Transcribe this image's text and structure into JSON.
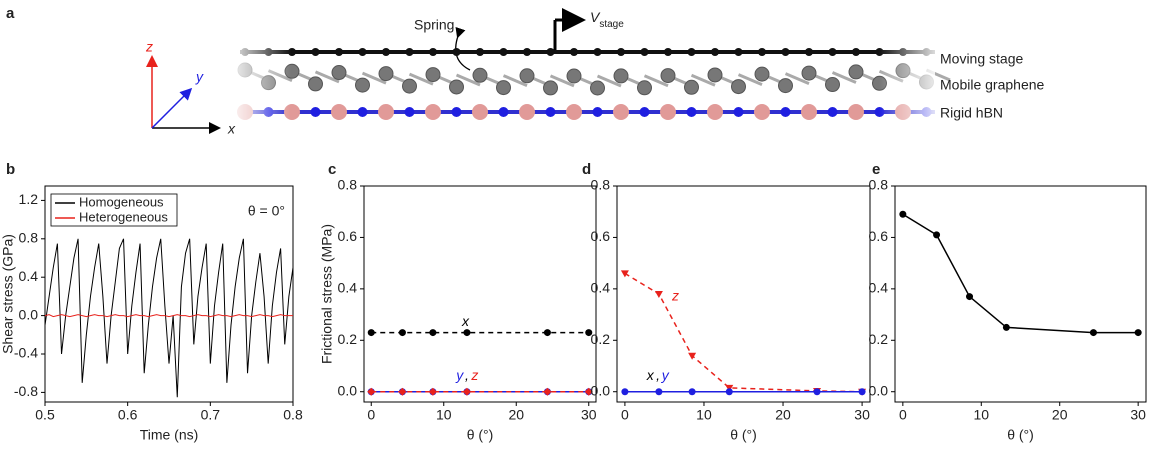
{
  "schematic": {
    "label": "a",
    "axes": [
      "x",
      "y",
      "z"
    ],
    "spring": "Spring",
    "velocity": "V",
    "velocity_sub": "stage",
    "layers": [
      "Moving stage",
      "Mobile graphene",
      "Rigid hBN"
    ]
  },
  "chart_data": [
    {
      "type": "line",
      "label": "b",
      "xlabel": "Time (ns)",
      "ylabel": "Shear stress (GPa)",
      "annotation": "θ = 0°",
      "legend": "upper left",
      "x": [
        0.5,
        0.505,
        0.51,
        0.515,
        0.52,
        0.525,
        0.53,
        0.535,
        0.54,
        0.545,
        0.55,
        0.555,
        0.56,
        0.565,
        0.57,
        0.575,
        0.58,
        0.585,
        0.59,
        0.595,
        0.6,
        0.605,
        0.61,
        0.615,
        0.62,
        0.625,
        0.63,
        0.635,
        0.64,
        0.645,
        0.65,
        0.655,
        0.66,
        0.665,
        0.67,
        0.675,
        0.68,
        0.685,
        0.69,
        0.695,
        0.7,
        0.705,
        0.71,
        0.715,
        0.72,
        0.725,
        0.73,
        0.735,
        0.74,
        0.745,
        0.75,
        0.755,
        0.76,
        0.765,
        0.77,
        0.775,
        0.78,
        0.785,
        0.79,
        0.795,
        0.8
      ],
      "series": [
        {
          "name": "Homogeneous",
          "color": "#000000",
          "values": [
            -0.1,
            0.2,
            0.5,
            0.75,
            -0.4,
            0.0,
            0.3,
            0.6,
            0.8,
            -0.7,
            -0.2,
            0.2,
            0.5,
            0.75,
            0.2,
            -0.5,
            0.0,
            0.35,
            0.7,
            0.8,
            -0.4,
            0.1,
            0.45,
            0.75,
            -0.6,
            -0.1,
            0.3,
            0.6,
            0.8,
            0.1,
            -0.5,
            0.0,
            -0.85,
            0.3,
            0.65,
            0.8,
            -0.3,
            0.2,
            0.5,
            0.75,
            -0.5,
            0.1,
            0.45,
            0.75,
            -0.7,
            -0.1,
            0.3,
            0.6,
            0.8,
            -0.6,
            0.0,
            0.35,
            0.65,
            0.2,
            -0.5,
            0.1,
            0.45,
            0.7,
            -0.3,
            0.2,
            0.5
          ]
        },
        {
          "name": "Heterogeneous",
          "color": "#e8221c",
          "values": [
            0,
            0.01,
            -0.01,
            0,
            0.01,
            0,
            -0.01,
            0,
            0.01,
            0,
            -0.01,
            0,
            0.01,
            0,
            0,
            -0.01,
            0,
            0.01,
            0,
            0,
            -0.01,
            0,
            0.01,
            0,
            0,
            -0.01,
            0,
            0.01,
            0,
            0,
            -0.01,
            0,
            0.01,
            0,
            0,
            -0.01,
            0,
            0.01,
            0,
            0,
            -0.01,
            0,
            0.01,
            0,
            0,
            -0.01,
            0,
            0.01,
            0,
            0,
            -0.01,
            0,
            0.01,
            0,
            0,
            -0.01,
            0,
            0.01,
            0,
            0,
            0
          ]
        }
      ],
      "xlim": [
        0.5,
        0.8
      ],
      "xticks": [
        0.5,
        0.6,
        0.7,
        0.8
      ],
      "ylim": [
        -0.9,
        1.35
      ],
      "yticks": [
        -0.8,
        -0.4,
        {
          "value": 0,
          "label": "0.0"
        },
        0.4,
        0.8,
        1.2
      ]
    },
    {
      "type": "line",
      "label": "c",
      "xlabel": "θ (°)",
      "ylabel": "Frictional stress (MPa)",
      "annotations": [
        {
          "text": "x",
          "color": "#000000"
        },
        {
          "text": "y",
          "color": "#1f1fe0"
        },
        {
          "text": ",",
          "color": "#000000"
        },
        {
          "text": "z",
          "color": "#e8221c"
        }
      ],
      "x": [
        0,
        4.3,
        8.5,
        13.2,
        24.3,
        30
      ],
      "series": [
        {
          "color": "#000000",
          "dash": true,
          "marker": "circle",
          "values": [
            0.23,
            0.23,
            0.23,
            0.23,
            0.23,
            0.23
          ]
        },
        {
          "color": "#1f1fe0",
          "dash": false,
          "marker": "circle",
          "values": [
            0,
            0,
            0,
            0,
            0,
            0
          ]
        },
        {
          "color": "#e8221c",
          "dash": true,
          "marker": "diamond",
          "values": [
            0,
            0,
            0,
            0,
            0,
            0
          ]
        }
      ],
      "xlim": [
        -1,
        31
      ],
      "xticks": [
        0,
        10,
        20,
        30
      ],
      "ylim": [
        -0.04,
        0.8
      ],
      "yticks": [
        {
          "value": 0,
          "label": "0.0"
        },
        0.2,
        0.4,
        0.6,
        0.8
      ]
    },
    {
      "type": "line",
      "label": "d",
      "xlabel": "θ (°)",
      "annotations": [
        {
          "text": "x",
          "color": "#000000"
        },
        {
          "text": ",",
          "color": "#000000"
        },
        {
          "text": "y",
          "color": "#1f1fe0"
        },
        {
          "text": "z",
          "color": "#e8221c"
        }
      ],
      "x": [
        0,
        4.3,
        8.5,
        13.2,
        24.3,
        30
      ],
      "series": [
        {
          "color": "#e8221c",
          "dash": true,
          "marker": "triangle-down",
          "values": [
            0.46,
            0.38,
            0.14,
            0.015,
            0.003,
            0.0
          ]
        },
        {
          "color": "#1f1fe0",
          "dash": false,
          "marker": "circle",
          "values": [
            0,
            0,
            0,
            0,
            0,
            0
          ]
        }
      ],
      "xlim": [
        -1,
        31
      ],
      "xticks": [
        0,
        10,
        20,
        30
      ],
      "ylim": [
        -0.04,
        0.8
      ],
      "yticks": [
        {
          "value": 0,
          "label": "0.0"
        },
        0.2,
        0.4,
        0.6,
        0.8
      ]
    },
    {
      "type": "line",
      "label": "e",
      "xlabel": "θ (°)",
      "x": [
        0,
        4.3,
        8.5,
        13.2,
        24.3,
        30
      ],
      "series": [
        {
          "color": "#000000",
          "dash": false,
          "marker": "circle",
          "values": [
            0.69,
            0.61,
            0.37,
            0.25,
            0.23,
            0.23
          ]
        }
      ],
      "xlim": [
        -1,
        31
      ],
      "xticks": [
        0,
        10,
        20,
        30
      ],
      "ylim": [
        -0.04,
        0.8
      ],
      "yticks": [
        {
          "value": 0,
          "label": "0.0"
        },
        0.2,
        0.4,
        0.6,
        0.8
      ]
    }
  ]
}
